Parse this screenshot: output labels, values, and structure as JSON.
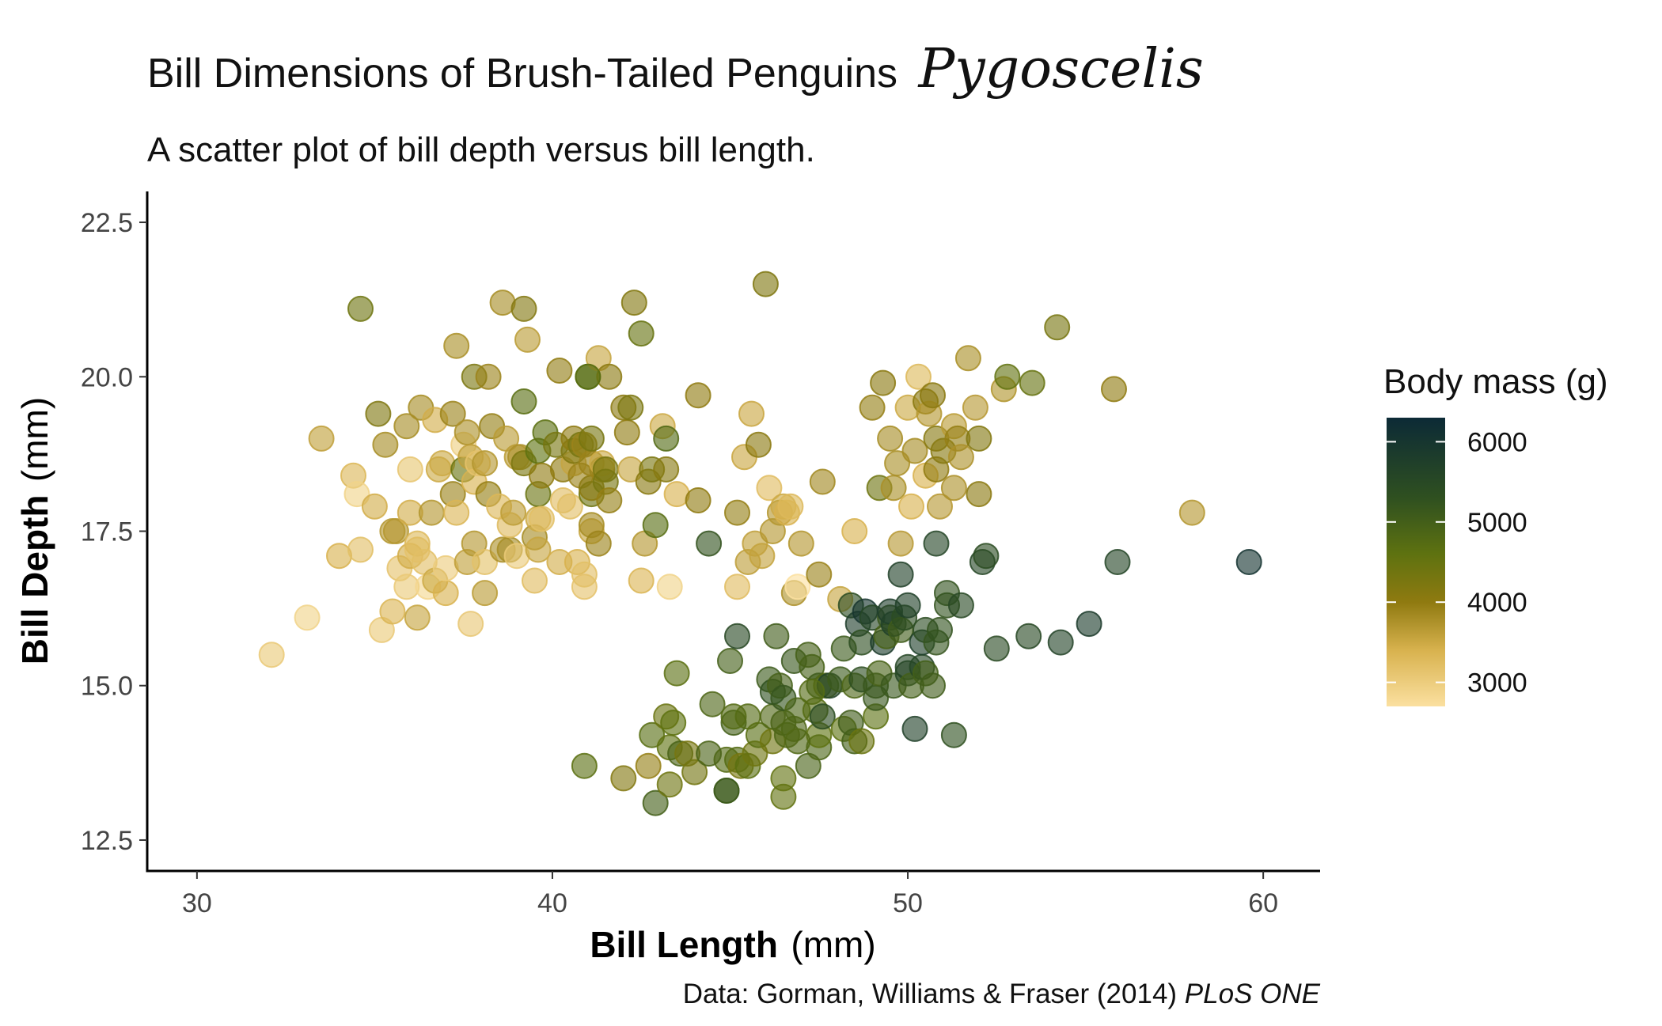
{
  "chart_data": {
    "type": "scatter",
    "title": "Bill Dimensions of Brush-Tailed Penguins",
    "title_genus": "Pygoscelis",
    "subtitle": "A scatter plot of bill depth versus bill length.",
    "xlabel": {
      "bold": "Bill Length",
      "unit": "(mm)"
    },
    "ylabel": {
      "bold": "Bill Depth",
      "unit": "(mm)"
    },
    "xlim": [
      28.6,
      61.6
    ],
    "ylim": [
      12.0,
      23.0
    ],
    "x_ticks": [
      30,
      40,
      50,
      60
    ],
    "x_tick_labels": [
      "30",
      "40",
      "50",
      "60"
    ],
    "y_ticks": [
      12.5,
      15.0,
      17.5,
      20.0,
      22.5
    ],
    "y_tick_labels": [
      "12.5",
      "15.0",
      "17.5",
      "20.0",
      "22.5"
    ],
    "grid": false,
    "color_scale": {
      "title": "Body mass (g)",
      "min": 2700,
      "max": 6300,
      "ticks": [
        3000,
        4000,
        5000,
        6000
      ],
      "tick_labels": [
        "3000",
        "4000",
        "5000",
        "6000"
      ],
      "stops": [
        {
          "value": 2700,
          "color": "#fbe0a0"
        },
        {
          "value": 3400,
          "color": "#d8b24e"
        },
        {
          "value": 4000,
          "color": "#8f7a10"
        },
        {
          "value": 4600,
          "color": "#5e7210"
        },
        {
          "value": 5300,
          "color": "#2f5020"
        },
        {
          "value": 6300,
          "color": "#0c2a36"
        }
      ],
      "legend_position": "right"
    },
    "point_opacity": 0.62,
    "caption": {
      "text": "Data: Gorman, Williams & Fraser (2014) ",
      "italic": "PLoS ONE"
    },
    "points": [
      [
        32.1,
        15.5,
        3050
      ],
      [
        33.1,
        16.1,
        2900
      ],
      [
        33.5,
        19.0,
        3600
      ],
      [
        34.0,
        17.1,
        3400
      ],
      [
        34.4,
        18.4,
        3325
      ],
      [
        34.5,
        18.1,
        2900
      ],
      [
        34.6,
        21.1,
        4400
      ],
      [
        34.6,
        17.2,
        3200
      ],
      [
        35.0,
        17.9,
        3450
      ],
      [
        35.1,
        19.4,
        4200
      ],
      [
        35.2,
        15.9,
        3050
      ],
      [
        35.3,
        18.9,
        3800
      ],
      [
        35.5,
        16.2,
        3350
      ],
      [
        35.5,
        17.5,
        3700
      ],
      [
        35.6,
        17.5,
        3700
      ],
      [
        35.7,
        16.9,
        3150
      ],
      [
        35.9,
        16.6,
        3050
      ],
      [
        35.9,
        19.2,
        3800
      ],
      [
        36.0,
        17.1,
        3450
      ],
      [
        36.0,
        17.8,
        3450
      ],
      [
        36.0,
        18.5,
        3100
      ],
      [
        36.2,
        16.1,
        3550
      ],
      [
        36.2,
        17.2,
        3150
      ],
      [
        36.2,
        17.3,
        3300
      ],
      [
        36.3,
        19.5,
        3800
      ],
      [
        36.4,
        17.0,
        3200
      ],
      [
        36.5,
        16.6,
        2850
      ],
      [
        36.6,
        17.8,
        3700
      ],
      [
        36.7,
        16.7,
        3500
      ],
      [
        36.7,
        19.3,
        3450
      ],
      [
        36.8,
        18.5,
        3500
      ],
      [
        36.9,
        18.6,
        3500
      ],
      [
        37.0,
        16.5,
        3400
      ],
      [
        37.0,
        16.9,
        3000
      ],
      [
        37.2,
        18.1,
        3900
      ],
      [
        37.2,
        19.4,
        3900
      ],
      [
        37.3,
        17.8,
        3350
      ],
      [
        37.3,
        20.5,
        3775
      ],
      [
        37.5,
        18.5,
        4475
      ],
      [
        37.5,
        18.9,
        2975
      ],
      [
        37.6,
        17.0,
        3600
      ],
      [
        37.6,
        19.1,
        3750
      ],
      [
        37.7,
        16.0,
        3075
      ],
      [
        37.7,
        18.7,
        3600
      ],
      [
        37.8,
        17.3,
        3700
      ],
      [
        37.8,
        18.3,
        3400
      ],
      [
        37.8,
        20.0,
        4250
      ],
      [
        37.9,
        18.6,
        3150
      ],
      [
        38.1,
        16.5,
        3650
      ],
      [
        38.1,
        17.0,
        3175
      ],
      [
        38.1,
        18.6,
        3700
      ],
      [
        38.2,
        18.1,
        3950
      ],
      [
        38.2,
        20.0,
        3900
      ],
      [
        38.3,
        19.2,
        3950
      ],
      [
        38.5,
        17.9,
        3325
      ],
      [
        38.6,
        17.2,
        3750
      ],
      [
        38.6,
        21.2,
        3800
      ],
      [
        38.7,
        19.0,
        3650
      ],
      [
        38.8,
        17.2,
        3800
      ],
      [
        38.8,
        17.6,
        3275
      ],
      [
        38.9,
        17.8,
        3625
      ],
      [
        39.0,
        17.1,
        3050
      ],
      [
        39.0,
        18.7,
        3650
      ],
      [
        39.1,
        18.7,
        3750
      ],
      [
        39.2,
        18.6,
        4250
      ],
      [
        39.2,
        19.6,
        4675
      ],
      [
        39.2,
        21.1,
        4150
      ],
      [
        39.3,
        20.6,
        3650
      ],
      [
        39.5,
        16.7,
        3250
      ],
      [
        39.5,
        17.4,
        3800
      ],
      [
        39.6,
        17.2,
        3550
      ],
      [
        39.6,
        17.7,
        3500
      ],
      [
        39.6,
        18.1,
        4450
      ],
      [
        39.6,
        18.8,
        4600
      ],
      [
        39.7,
        17.7,
        3200
      ],
      [
        39.7,
        18.4,
        4000
      ],
      [
        39.8,
        19.1,
        4650
      ],
      [
        40.1,
        18.9,
        4300
      ],
      [
        40.2,
        17.0,
        3450
      ],
      [
        40.2,
        20.1,
        3975
      ],
      [
        40.3,
        18.5,
        4000
      ],
      [
        40.3,
        18.0,
        3250
      ],
      [
        40.5,
        17.9,
        3200
      ],
      [
        40.6,
        18.6,
        3550
      ],
      [
        40.6,
        18.8,
        4200
      ],
      [
        40.6,
        19.0,
        4000
      ],
      [
        40.7,
        17.0,
        3400
      ],
      [
        40.8,
        18.4,
        3900
      ],
      [
        40.8,
        18.9,
        4300
      ],
      [
        40.9,
        16.6,
        3150
      ],
      [
        40.9,
        16.8,
        3200
      ],
      [
        40.9,
        18.9,
        3900
      ],
      [
        41.0,
        20.0,
        4725
      ],
      [
        41.1,
        17.5,
        3550
      ],
      [
        41.1,
        17.6,
        3800
      ],
      [
        41.1,
        18.1,
        4400
      ],
      [
        41.1,
        18.2,
        4050
      ],
      [
        41.1,
        18.6,
        3900
      ],
      [
        41.1,
        19.0,
        4300
      ],
      [
        41.3,
        17.3,
        3900
      ],
      [
        41.3,
        20.3,
        3550
      ],
      [
        41.4,
        18.5,
        3900
      ],
      [
        41.4,
        18.6,
        3500
      ],
      [
        41.5,
        18.3,
        4300
      ],
      [
        41.5,
        18.5,
        4300
      ],
      [
        41.6,
        18.0,
        3950
      ],
      [
        41.6,
        20.0,
        4050
      ],
      [
        42.0,
        19.5,
        4050
      ],
      [
        42.1,
        19.1,
        4000
      ],
      [
        42.2,
        18.5,
        3550
      ],
      [
        42.2,
        19.5,
        4250
      ],
      [
        42.3,
        21.2,
        4150
      ],
      [
        42.5,
        20.7,
        4500
      ],
      [
        42.5,
        16.7,
        3350
      ],
      [
        42.6,
        17.3,
        3700
      ],
      [
        42.7,
        18.3,
        4075
      ],
      [
        42.8,
        18.5,
        4250
      ],
      [
        42.9,
        17.6,
        4700
      ],
      [
        43.1,
        19.2,
        3500
      ],
      [
        43.2,
        18.5,
        4100
      ],
      [
        43.2,
        19.0,
        4775
      ],
      [
        43.3,
        16.6,
        2900
      ],
      [
        43.5,
        18.1,
        3400
      ],
      [
        44.1,
        19.7,
        4000
      ],
      [
        44.1,
        18.0,
        4000
      ],
      [
        44.4,
        17.3,
        5250
      ],
      [
        45.2,
        16.6,
        3250
      ],
      [
        45.2,
        17.8,
        3950
      ],
      [
        45.4,
        18.7,
        3525
      ],
      [
        45.5,
        17.0,
        3625
      ],
      [
        45.6,
        19.4,
        3525
      ],
      [
        45.7,
        17.3,
        3600
      ],
      [
        45.8,
        18.9,
        4050
      ],
      [
        45.9,
        17.1,
        3575
      ],
      [
        46.0,
        21.5,
        4200
      ],
      [
        46.1,
        18.2,
        3250
      ],
      [
        46.2,
        17.5,
        3700
      ],
      [
        46.4,
        17.8,
        3700
      ],
      [
        46.5,
        17.9,
        3500
      ],
      [
        46.6,
        17.8,
        3400
      ],
      [
        46.7,
        17.9,
        3300
      ],
      [
        46.8,
        16.5,
        3750
      ],
      [
        46.9,
        16.6,
        2700
      ],
      [
        47.0,
        17.3,
        3700
      ],
      [
        47.5,
        16.8,
        3900
      ],
      [
        47.6,
        18.3,
        3850
      ],
      [
        48.1,
        16.4,
        3550
      ],
      [
        48.5,
        17.5,
        3400
      ],
      [
        49.0,
        19.5,
        3950
      ],
      [
        49.2,
        18.2,
        4400
      ],
      [
        49.3,
        19.9,
        4050
      ],
      [
        49.5,
        19.0,
        3800
      ],
      [
        49.6,
        18.2,
        3775
      ],
      [
        49.7,
        18.6,
        3775
      ],
      [
        49.8,
        17.3,
        3675
      ],
      [
        50.0,
        19.5,
        3500
      ],
      [
        50.1,
        17.9,
        3400
      ],
      [
        50.2,
        18.8,
        3800
      ],
      [
        50.3,
        20.0,
        3300
      ],
      [
        50.5,
        18.4,
        3400
      ],
      [
        50.5,
        19.6,
        4050
      ],
      [
        50.6,
        19.4,
        3700
      ],
      [
        50.7,
        19.7,
        4050
      ],
      [
        50.8,
        18.5,
        4000
      ],
      [
        50.8,
        19.0,
        4100
      ],
      [
        50.9,
        17.9,
        3675
      ],
      [
        51.0,
        18.8,
        4100
      ],
      [
        51.3,
        18.2,
        3750
      ],
      [
        51.3,
        19.2,
        3650
      ],
      [
        51.4,
        19.0,
        3950
      ],
      [
        51.5,
        18.7,
        3750
      ],
      [
        51.7,
        20.3,
        3775
      ],
      [
        51.9,
        19.5,
        3675
      ],
      [
        52.0,
        18.1,
        4050
      ],
      [
        52.0,
        19.0,
        4150
      ],
      [
        52.7,
        19.8,
        3725
      ],
      [
        52.8,
        20.0,
        4550
      ],
      [
        53.5,
        19.9,
        4500
      ],
      [
        54.2,
        20.8,
        4300
      ],
      [
        55.8,
        19.8,
        4000
      ],
      [
        58.0,
        17.8,
        3700
      ],
      [
        40.9,
        13.7,
        4650
      ],
      [
        42.0,
        13.5,
        4150
      ],
      [
        42.7,
        13.7,
        3950
      ],
      [
        42.8,
        14.2,
        4700
      ],
      [
        42.9,
        13.1,
        5000
      ],
      [
        43.2,
        14.5,
        4450
      ],
      [
        43.3,
        13.4,
        4400
      ],
      [
        43.3,
        14.0,
        4575
      ],
      [
        43.4,
        14.4,
        4600
      ],
      [
        43.5,
        15.2,
        4650
      ],
      [
        43.6,
        13.9,
        4900
      ],
      [
        43.8,
        13.9,
        4300
      ],
      [
        44.0,
        13.6,
        4350
      ],
      [
        44.5,
        14.7,
        4850
      ],
      [
        44.9,
        13.3,
        5100
      ],
      [
        44.9,
        13.8,
        4750
      ],
      [
        45.0,
        15.4,
        5000
      ],
      [
        45.1,
        14.4,
        5000
      ],
      [
        45.1,
        14.5,
        4750
      ],
      [
        45.2,
        13.8,
        4750
      ],
      [
        45.2,
        15.8,
        5500
      ],
      [
        45.3,
        13.7,
        4300
      ],
      [
        45.5,
        13.7,
        4650
      ],
      [
        45.5,
        14.5,
        4750
      ],
      [
        45.7,
        13.9,
        4400
      ],
      [
        45.8,
        14.2,
        4700
      ],
      [
        46.1,
        15.1,
        5100
      ],
      [
        46.2,
        14.1,
        4375
      ],
      [
        46.2,
        14.5,
        4800
      ],
      [
        46.2,
        14.9,
        5300
      ],
      [
        46.3,
        15.8,
        5050
      ],
      [
        46.4,
        15.0,
        4975
      ],
      [
        46.5,
        13.5,
        4550
      ],
      [
        46.5,
        14.4,
        4900
      ],
      [
        46.5,
        14.8,
        5200
      ],
      [
        46.6,
        14.2,
        4850
      ],
      [
        46.8,
        14.3,
        4850
      ],
      [
        46.8,
        15.4,
        5150
      ],
      [
        46.9,
        14.6,
        4875
      ],
      [
        47.2,
        13.7,
        4925
      ],
      [
        47.2,
        15.5,
        4975
      ],
      [
        47.3,
        15.3,
        4950
      ],
      [
        47.4,
        14.6,
        4725
      ],
      [
        47.5,
        14.0,
        4875
      ],
      [
        47.5,
        14.2,
        4600
      ],
      [
        47.5,
        15.0,
        5075
      ],
      [
        47.6,
        14.5,
        5400
      ],
      [
        47.7,
        15.0,
        4800
      ],
      [
        47.8,
        15.0,
        5650
      ],
      [
        48.1,
        15.1,
        5100
      ],
      [
        48.2,
        14.3,
        4600
      ],
      [
        48.2,
        15.6,
        5100
      ],
      [
        48.4,
        14.4,
        5050
      ],
      [
        48.4,
        16.3,
        5400
      ],
      [
        48.5,
        14.1,
        5000
      ],
      [
        48.5,
        15.0,
        4850
      ],
      [
        48.6,
        16.0,
        5800
      ],
      [
        48.7,
        14.1,
        4450
      ],
      [
        48.7,
        15.1,
        5350
      ],
      [
        48.7,
        15.7,
        5350
      ],
      [
        48.8,
        16.2,
        6000
      ],
      [
        49.0,
        16.1,
        5550
      ],
      [
        49.1,
        14.5,
        4625
      ],
      [
        49.1,
        14.8,
        5150
      ],
      [
        49.1,
        15.0,
        5150
      ],
      [
        49.2,
        15.2,
        4925
      ],
      [
        49.3,
        15.7,
        5850
      ],
      [
        49.4,
        15.8,
        4925
      ],
      [
        49.5,
        16.1,
        5150
      ],
      [
        49.5,
        16.2,
        5800
      ],
      [
        49.6,
        15.0,
        5150
      ],
      [
        49.6,
        16.0,
        5700
      ],
      [
        49.8,
        15.9,
        5050
      ],
      [
        49.8,
        16.8,
        5700
      ],
      [
        49.9,
        16.1,
        5400
      ],
      [
        50.0,
        15.2,
        5550
      ],
      [
        50.0,
        15.3,
        5550
      ],
      [
        50.0,
        16.3,
        5700
      ],
      [
        50.1,
        15.0,
        5000
      ],
      [
        50.2,
        14.3,
        5700
      ],
      [
        50.4,
        15.3,
        5550
      ],
      [
        50.4,
        15.7,
        5750
      ],
      [
        50.5,
        15.2,
        5000
      ],
      [
        50.5,
        15.9,
        5400
      ],
      [
        50.7,
        15.0,
        5050
      ],
      [
        50.8,
        15.7,
        5200
      ],
      [
        50.8,
        17.3,
        5600
      ],
      [
        50.9,
        15.9,
        5250
      ],
      [
        51.1,
        16.3,
        5250
      ],
      [
        51.1,
        16.5,
        5250
      ],
      [
        51.3,
        14.2,
        5300
      ],
      [
        51.5,
        16.3,
        5500
      ],
      [
        52.1,
        17.0,
        5550
      ],
      [
        52.2,
        17.1,
        5400
      ],
      [
        52.5,
        15.6,
        5450
      ],
      [
        53.4,
        15.8,
        5500
      ],
      [
        54.3,
        15.7,
        5650
      ],
      [
        55.1,
        16.0,
        5850
      ],
      [
        55.9,
        17.0,
        5600
      ],
      [
        59.6,
        17.0,
        6050
      ],
      [
        41.0,
        20.0,
        4700
      ],
      [
        44.4,
        13.9,
        4900
      ],
      [
        44.9,
        13.3,
        5100
      ],
      [
        46.5,
        13.2,
        4550
      ],
      [
        46.9,
        14.1,
        4800
      ],
      [
        47.3,
        14.9,
        4750
      ]
    ]
  }
}
